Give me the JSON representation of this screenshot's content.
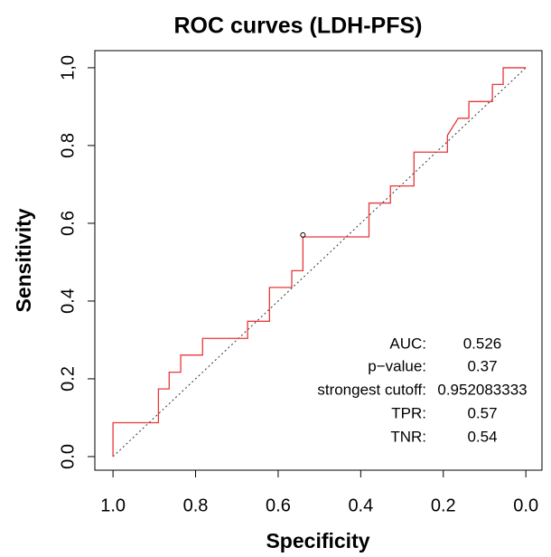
{
  "chart_data": {
    "type": "roc",
    "title": "ROC curves (LDH-PFS)",
    "x_label": "Specificity",
    "y_label": "Sensitivity",
    "color": "#e8373a",
    "x": [
      1,
      1,
      0.89,
      0.89,
      0.864,
      0.864,
      0.836,
      0.836,
      0.783,
      0.783,
      0.674,
      0.674,
      0.621,
      0.621,
      0.567,
      0.567,
      0.54,
      0.54,
      0.38,
      0.38,
      0.328,
      0.328,
      0.271,
      0.271,
      0.19,
      0.19,
      0.164,
      0.138,
      0.138,
      0.081,
      0.081,
      0.055,
      0.055,
      0
    ],
    "y": [
      0,
      0.087,
      0.087,
      0.174,
      0.174,
      0.217,
      0.217,
      0.261,
      0.261,
      0.304,
      0.304,
      0.348,
      0.348,
      0.435,
      0.435,
      0.478,
      0.478,
      0.565,
      0.565,
      0.652,
      0.652,
      0.696,
      0.696,
      0.783,
      0.783,
      0.826,
      0.87,
      0.87,
      0.913,
      0.913,
      0.957,
      0.957,
      1,
      1
    ],
    "xlim": [
      1.044,
      -0.039
    ],
    "ylim": [
      -0.035,
      1.044
    ],
    "xticks": [
      {
        "value": 1,
        "label": "1.0"
      },
      0.8,
      0.6,
      0.4,
      0.2,
      {
        "value": 0,
        "label": "0.0"
      }
    ],
    "yticks": [
      {
        "value": 0,
        "label": "0.0"
      },
      0.2,
      0.4,
      0.6,
      0.8,
      {
        "value": 1,
        "label": "1,0"
      }
    ],
    "reference_line": true,
    "stats": [
      {
        "label": "AUC:",
        "value": 0.526
      },
      {
        "label": "p−value:",
        "value": 0.37
      },
      {
        "label": "strongest cutoff:",
        "value": 0.952083333
      },
      {
        "label": "TPR:",
        "value": 0.57
      },
      {
        "label": "TNR:",
        "value": 0.54
      }
    ]
  }
}
